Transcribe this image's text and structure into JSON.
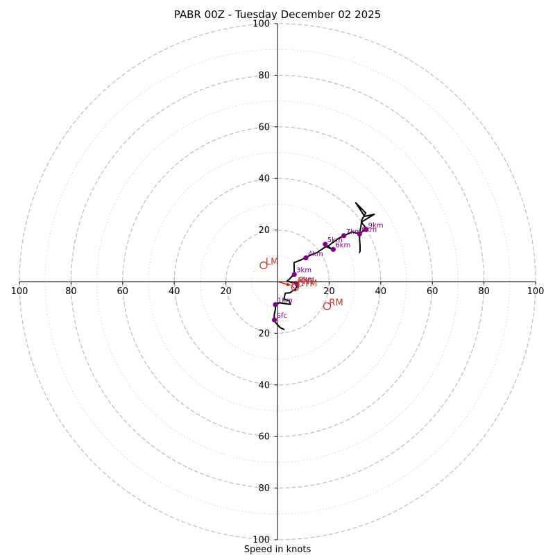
{
  "chart_data": {
    "type": "hodograph",
    "title": "PABR 00Z - Tuesday December 02 2025",
    "xlabel": "Speed in knots",
    "max_speed": 100,
    "ring_labels": [
      "100",
      "80",
      "60",
      "40",
      "20",
      "20",
      "40",
      "60",
      "80",
      "100"
    ],
    "ring_label_values": [
      100,
      80,
      60,
      40,
      20,
      20,
      40,
      60,
      80,
      100
    ],
    "v_labels": [
      "100",
      "80",
      "60",
      "40",
      "20",
      "20",
      "40",
      "60",
      "80",
      "100"
    ],
    "v_label_values": [
      100,
      80,
      60,
      40,
      20,
      -20,
      -40,
      -60,
      -80,
      -100
    ],
    "ring_major": [
      20,
      40,
      60,
      80,
      100
    ],
    "ring_minor": [
      10,
      30,
      50,
      70,
      90
    ],
    "trace": [
      [
        2.5,
        -18.5
      ],
      [
        1,
        -17.8
      ],
      [
        -1.4,
        -15.1
      ],
      [
        -1.2,
        -12.5
      ],
      [
        -0.8,
        -10.7
      ],
      [
        -0.8,
        -9.1
      ],
      [
        0.7,
        -8.2
      ],
      [
        5,
        -8.8
      ],
      [
        4.6,
        -7.5
      ],
      [
        2.5,
        -6.8
      ],
      [
        3,
        -4.5
      ],
      [
        4.8,
        -4.3
      ],
      [
        5.8,
        -3.6
      ],
      [
        7,
        -3
      ],
      [
        7.5,
        -1.8
      ],
      [
        6.6,
        -0.4
      ],
      [
        5.4,
        -0.3
      ],
      [
        3.7,
        0.3
      ],
      [
        4.4,
        0.8
      ],
      [
        5,
        1.4
      ],
      [
        6.5,
        3
      ],
      [
        6.4,
        7.4
      ],
      [
        9,
        8.4
      ],
      [
        11.1,
        9.4
      ],
      [
        12.6,
        10.2
      ],
      [
        15.5,
        11.4
      ],
      [
        18.3,
        13.3
      ],
      [
        19.5,
        13.7
      ],
      [
        21.6,
        12.3
      ],
      [
        19.2,
        13.5
      ],
      [
        21.6,
        15.3
      ],
      [
        23.9,
        16.9
      ],
      [
        25.7,
        17.8
      ],
      [
        29,
        19.3
      ],
      [
        31.8,
        18.5
      ],
      [
        33.2,
        19.7
      ],
      [
        34.3,
        20.7
      ],
      [
        33.2,
        22.1
      ],
      [
        32.5,
        23.1
      ],
      [
        37.5,
        26.1
      ],
      [
        33.8,
        25.3
      ],
      [
        30.3,
        30.6
      ],
      [
        34.2,
        26.6
      ],
      [
        32.6,
        23.8
      ],
      [
        32.3,
        21.4
      ],
      [
        31.8,
        18.8
      ],
      [
        31.8,
        16.5
      ],
      [
        32,
        14
      ],
      [
        32,
        11.9
      ],
      [
        31.8,
        11.3
      ]
    ],
    "heights": [
      {
        "label": "Sfc",
        "u": -1.2,
        "v": -14.8
      },
      {
        "label": "1km",
        "u": -0.8,
        "v": -8.9
      },
      {
        "label": "2km",
        "u": 7.5,
        "v": -0.8
      },
      {
        "label": "3km",
        "u": 6.5,
        "v": 2.8
      },
      {
        "label": "4km",
        "u": 11,
        "v": 9.2
      },
      {
        "label": "5km",
        "u": 18.5,
        "v": 14.5
      },
      {
        "label": "6km",
        "u": 21.6,
        "v": 12.5
      },
      {
        "label": "7km",
        "u": 25.7,
        "v": 17.8
      },
      {
        "label": "8km",
        "u": 31.8,
        "v": 18.5
      },
      {
        "label": "9km",
        "u": 34.3,
        "v": 20.2
      }
    ],
    "motion_markers": [
      {
        "label": "LM",
        "u": -5.4,
        "v": 6.3,
        "color": "#c0392b"
      },
      {
        "label": "RM",
        "u": 19.2,
        "v": -9.5,
        "color": "#c0392b"
      },
      {
        "label": "MW",
        "u": 7,
        "v": -1.2,
        "color": "#c0392b"
      },
      {
        "label": "DTM",
        "u": 6.8,
        "v": -2.2,
        "color": "#c0392b"
      }
    ],
    "storm_arrow": {
      "u": 5,
      "v": -1.4,
      "color": "#ff0000"
    }
  },
  "colors": {
    "trace": "#000000",
    "height_point": "#800080",
    "storm_motion": "#c0392b",
    "major_ring": "#bcbcbc",
    "minor_ring": "#d2d2d2"
  }
}
